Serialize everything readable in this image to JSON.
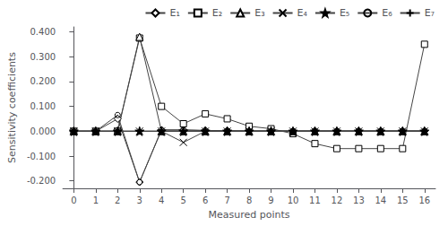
{
  "chart_data": {
    "type": "line",
    "xlabel": "Measured points",
    "ylabel": "Sensitivity coefficients",
    "x": [
      0,
      1,
      2,
      3,
      4,
      5,
      6,
      7,
      8,
      9,
      10,
      11,
      12,
      13,
      14,
      15,
      16
    ],
    "xlim": [
      -0.5,
      16.5
    ],
    "xticks": [
      0,
      1,
      2,
      3,
      4,
      5,
      6,
      7,
      8,
      9,
      10,
      11,
      12,
      13,
      14,
      15,
      16
    ],
    "ylim": [
      -0.23,
      0.42
    ],
    "yticks": [
      {
        "value": -0.2,
        "label": "-0.200"
      },
      {
        "value": -0.1,
        "label": "-0.100"
      },
      {
        "value": 0.0,
        "label": "0.000"
      },
      {
        "value": 0.1,
        "label": "0.100"
      },
      {
        "value": 0.2,
        "label": "0.200"
      },
      {
        "value": 0.3,
        "label": "0.300"
      },
      {
        "value": 0.4,
        "label": "0.400"
      }
    ],
    "grid": false,
    "legend": "upper right",
    "color": "#444444",
    "series": [
      {
        "name": "E₁",
        "marker": "diamond",
        "values": [
          0.0,
          0.0,
          0.05,
          -0.205,
          0.005,
          0.005,
          0.003,
          0.002,
          0.001,
          0.001,
          0.001,
          0.001,
          0.001,
          0.001,
          0.001,
          0.001,
          0.001
        ]
      },
      {
        "name": "E₂",
        "marker": "square",
        "values": [
          0.0,
          0.0,
          0.0,
          0.375,
          0.1,
          0.03,
          0.07,
          0.05,
          0.02,
          0.01,
          -0.01,
          -0.05,
          -0.07,
          -0.07,
          -0.07,
          -0.07,
          0.35
        ]
      },
      {
        "name": "E₃",
        "marker": "triangle",
        "values": [
          0.0,
          0.0,
          0.0,
          0.38,
          0.0,
          0.0,
          0.0,
          0.0,
          0.0,
          0.0,
          0.0,
          0.0,
          0.0,
          0.0,
          0.0,
          0.0,
          0.0
        ]
      },
      {
        "name": "E₄",
        "marker": "x",
        "values": [
          0.0,
          0.0,
          0.0,
          0.0,
          0.0,
          -0.045,
          0.0,
          0.0,
          0.0,
          0.0,
          0.0,
          0.0,
          0.0,
          0.0,
          0.0,
          0.0,
          0.0
        ]
      },
      {
        "name": "E₅",
        "marker": "star",
        "values": [
          0.0,
          0.0,
          0.0,
          0.0,
          0.0,
          0.0,
          0.0,
          0.0,
          0.0,
          0.0,
          0.0,
          0.0,
          0.0,
          0.0,
          0.0,
          0.0,
          0.0
        ]
      },
      {
        "name": "E₆",
        "marker": "circle",
        "values": [
          0.0,
          0.0,
          0.065,
          -0.205,
          0.005,
          0.005,
          0.003,
          0.002,
          0.001,
          0.001,
          0.001,
          0.001,
          0.001,
          0.001,
          0.001,
          0.001,
          0.001
        ]
      },
      {
        "name": "E₇",
        "marker": "plus",
        "values": [
          0.0,
          0.0,
          0.0,
          0.0,
          0.0,
          0.0,
          0.0,
          0.0,
          0.0,
          0.0,
          0.0,
          0.0,
          0.0,
          0.0,
          0.0,
          0.0,
          0.0
        ]
      }
    ]
  }
}
